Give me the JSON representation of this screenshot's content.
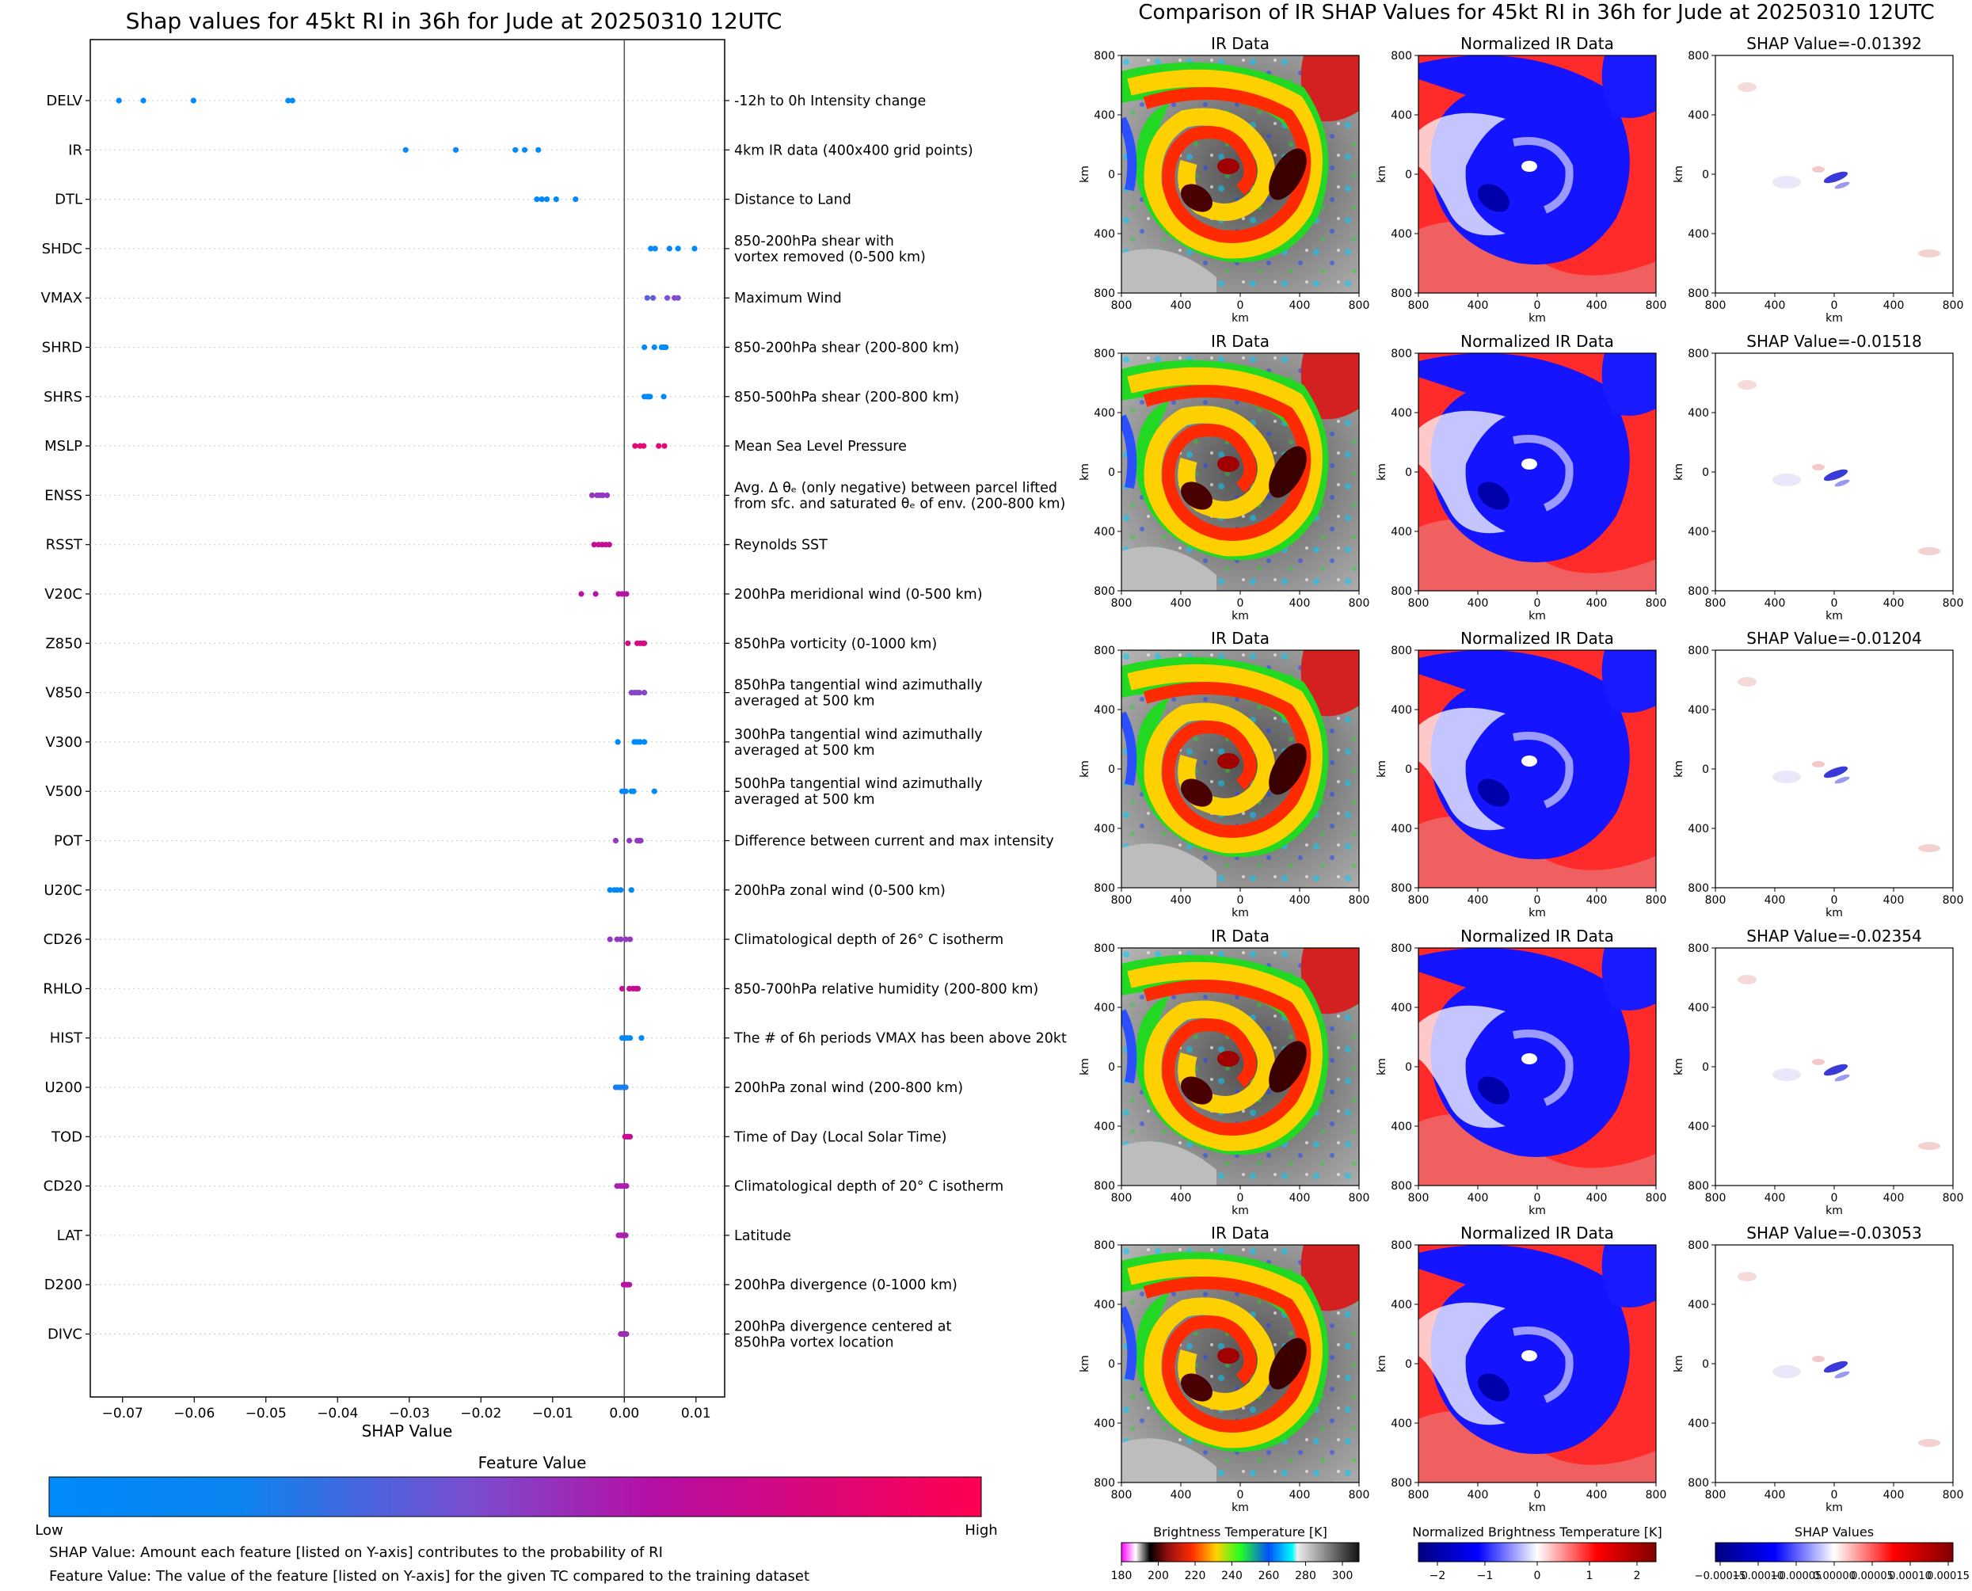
{
  "chart_data": [
    {
      "type": "scatter",
      "title": "Shap values for 45kt RI in 36h for Jude at 20250310 12UTC",
      "xlabel": "SHAP Value",
      "xlim": [
        -0.0745,
        0.014
      ],
      "xticks": [
        -0.07,
        -0.06,
        -0.05,
        -0.04,
        -0.03,
        -0.02,
        -0.01,
        0.0,
        0.01
      ],
      "xtick_labels": [
        "−0.07",
        "−0.06",
        "−0.05",
        "−0.04",
        "−0.03",
        "−0.02",
        "−0.01",
        "0.00",
        "0.01"
      ],
      "features": [
        {
          "name": "DELV",
          "desc": [
            "-12h to 0h Intensity change"
          ],
          "fv": [
            0.0,
            0.0,
            0.0,
            0.0,
            0.0
          ],
          "shap": [
            -0.0705,
            -0.0671,
            -0.0601,
            -0.0469,
            -0.0463
          ]
        },
        {
          "name": "IR",
          "desc": [
            "4km IR data (400x400 grid points)"
          ],
          "fv": [
            0.0,
            0.0,
            0.0,
            0.0,
            0.0
          ],
          "shap": [
            -0.0305,
            -0.0235,
            -0.0152,
            -0.0139,
            -0.012
          ]
        },
        {
          "name": "DTL",
          "desc": [
            "Distance to Land"
          ],
          "fv": [
            0.0,
            0.0,
            0.0,
            0.0,
            0.0
          ],
          "shap": [
            -0.0122,
            -0.0115,
            -0.0108,
            -0.0095,
            -0.0068
          ]
        },
        {
          "name": "SHDC",
          "desc": [
            "850-200hPa shear with",
            "vortex removed (0-500 km)"
          ],
          "fv": [
            0.05,
            0.05,
            0.05,
            0.05,
            0.05
          ],
          "shap": [
            0.0037,
            0.0043,
            0.0063,
            0.0075,
            0.0098
          ]
        },
        {
          "name": "VMAX",
          "desc": [
            "Maximum Wind"
          ],
          "fv": [
            0.42,
            0.45,
            0.5,
            0.55,
            0.5
          ],
          "shap": [
            0.0032,
            0.004,
            0.006,
            0.007,
            0.0075
          ]
        },
        {
          "name": "SHRD",
          "desc": [
            "850-200hPa shear (200-800 km)"
          ],
          "fv": [
            0.05,
            0.05,
            0.05,
            0.05,
            0.05
          ],
          "shap": [
            0.0028,
            0.0042,
            0.0052,
            0.0058,
            0.0055
          ]
        },
        {
          "name": "SHRS",
          "desc": [
            "850-500hPa shear (200-800 km)"
          ],
          "fv": [
            0.05,
            0.05,
            0.05,
            0.05,
            0.05
          ],
          "shap": [
            0.0028,
            0.0032,
            0.0036,
            0.0055,
            0.0034
          ]
        },
        {
          "name": "MSLP",
          "desc": [
            "Mean Sea Level Pressure"
          ],
          "fv": [
            0.9,
            0.9,
            0.9,
            0.9,
            0.9
          ],
          "shap": [
            0.0015,
            0.0022,
            0.0027,
            0.0048,
            0.0056
          ]
        },
        {
          "name": "ENSS",
          "desc": [
            "Avg. Δ θₑ (only negative) between parcel lifted",
            "from sfc. and saturated θₑ of env. (200-800 km)"
          ],
          "fv": [
            0.6,
            0.6,
            0.6,
            0.6,
            0.6
          ],
          "shap": [
            -0.0045,
            -0.0038,
            -0.0034,
            -0.003,
            -0.0024
          ]
        },
        {
          "name": "RSST",
          "desc": [
            "Reynolds SST"
          ],
          "fv": [
            0.8,
            0.8,
            0.8,
            0.8,
            0.8
          ],
          "shap": [
            -0.0042,
            -0.0036,
            -0.0031,
            -0.0026,
            -0.0021
          ]
        },
        {
          "name": "V20C",
          "desc": [
            "200hPa meridional wind (0-500 km)"
          ],
          "fv": [
            0.75,
            0.75,
            0.75,
            0.75,
            0.75
          ],
          "shap": [
            -0.006,
            -0.004,
            -0.0008,
            -0.0003,
            0.0003
          ]
        },
        {
          "name": "Z850",
          "desc": [
            "850hPa vorticity (0-1000 km)"
          ],
          "fv": [
            0.85,
            0.85,
            0.85,
            0.85,
            0.85
          ],
          "shap": [
            0.0005,
            0.0018,
            0.0022,
            0.0026,
            0.0028
          ]
        },
        {
          "name": "V850",
          "desc": [
            "850hPa tangential wind azimuthally",
            "averaged at 500 km"
          ],
          "fv": [
            0.55,
            0.55,
            0.55,
            0.55,
            0.55
          ],
          "shap": [
            0.001,
            0.0014,
            0.0018,
            0.0021,
            0.0028
          ]
        },
        {
          "name": "V300",
          "desc": [
            "300hPa tangential wind azimuthally",
            "averaged at 500 km"
          ],
          "fv": [
            0.1,
            0.1,
            0.1,
            0.1,
            0.1
          ],
          "shap": [
            -0.0009,
            0.0014,
            0.0018,
            0.0022,
            0.0028
          ]
        },
        {
          "name": "V500",
          "desc": [
            "500hPa tangential wind azimuthally",
            "averaged at 500 km"
          ],
          "fv": [
            0.1,
            0.1,
            0.1,
            0.1,
            0.1
          ],
          "shap": [
            -0.0003,
            0.0002,
            0.001,
            0.0013,
            0.0042
          ]
        },
        {
          "name": "POT",
          "desc": [
            "Difference between current and max intensity"
          ],
          "fv": [
            0.6,
            0.6,
            0.6,
            0.6,
            0.6
          ],
          "shap": [
            -0.0012,
            0.0007,
            0.0018,
            0.0021,
            0.0023
          ]
        },
        {
          "name": "U20C",
          "desc": [
            "200hPa zonal wind (0-500 km)"
          ],
          "fv": [
            0.2,
            0.2,
            0.2,
            0.2,
            0.2
          ],
          "shap": [
            -0.002,
            -0.0014,
            -0.001,
            -0.0005,
            0.001
          ]
        },
        {
          "name": "CD26",
          "desc": [
            "Climatological depth of 26° C isotherm"
          ],
          "fv": [
            0.6,
            0.6,
            0.6,
            0.6,
            0.6
          ],
          "shap": [
            -0.002,
            -0.001,
            -0.0005,
            0.0002,
            0.0008
          ]
        },
        {
          "name": "RHLO",
          "desc": [
            "850-700hPa relative humidity (200-800 km)"
          ],
          "fv": [
            0.8,
            0.8,
            0.8,
            0.8,
            0.8
          ],
          "shap": [
            -0.0003,
            0.0007,
            0.0012,
            0.0016,
            0.0019
          ]
        },
        {
          "name": "HIST",
          "desc": [
            "The # of 6h periods VMAX has been above 20kt"
          ],
          "fv": [
            0.15,
            0.15,
            0.15,
            0.15,
            0.15
          ],
          "shap": [
            -0.0003,
            0.0001,
            0.0004,
            0.0008,
            0.0024
          ]
        },
        {
          "name": "U200",
          "desc": [
            "200hPa zonal wind (200-800 km)"
          ],
          "fv": [
            0.3,
            0.3,
            0.3,
            0.3,
            0.3
          ],
          "shap": [
            -0.0012,
            -0.0008,
            -0.0005,
            -0.0002,
            0.0002
          ]
        },
        {
          "name": "TOD",
          "desc": [
            "Time of Day (Local Solar Time)"
          ],
          "fv": [
            0.8,
            0.8,
            0.8,
            0.8,
            0.8
          ],
          "shap": [
            0.0001,
            0.0003,
            0.0005,
            0.0006,
            0.0008
          ]
        },
        {
          "name": "CD20",
          "desc": [
            "Climatological depth of 20° C isotherm"
          ],
          "fv": [
            0.7,
            0.7,
            0.7,
            0.7,
            0.7
          ],
          "shap": [
            -0.001,
            -0.0006,
            -0.0003,
            0.0,
            0.0003
          ]
        },
        {
          "name": "LAT",
          "desc": [
            "Latitude"
          ],
          "fv": [
            0.7,
            0.7,
            0.7,
            0.7,
            0.7
          ],
          "shap": [
            -0.0008,
            -0.0005,
            -0.0003,
            -0.0001,
            0.0002
          ]
        },
        {
          "name": "D200",
          "desc": [
            "200hPa divergence (0-1000 km)"
          ],
          "fv": [
            0.75,
            0.75,
            0.75,
            0.75,
            0.75
          ],
          "shap": [
            -0.0001,
            0.0001,
            0.0003,
            0.0005,
            0.0007
          ]
        },
        {
          "name": "DIVC",
          "desc": [
            "200hPa divergence centered at",
            "850hPa vortex location"
          ],
          "fv": [
            0.65,
            0.65,
            0.65,
            0.65,
            0.65
          ],
          "shap": [
            -0.0005,
            -0.0003,
            -0.0001,
            0.0001,
            0.0003
          ]
        }
      ],
      "colorbar": {
        "title": "Feature Value",
        "low_label": "Low",
        "high_label": "High",
        "colors": [
          "#008afb",
          "#0088f4",
          "#7c52d0",
          "#b712a6",
          "#ff0051"
        ]
      },
      "notes": [
        "SHAP Value: Amount each feature [listed on Y-axis] contributes to the probability of RI",
        "Feature Value: The value of the feature [listed on Y-axis] for the given TC compared to the training dataset"
      ]
    },
    {
      "type": "heatmap",
      "title": "Comparison of IR SHAP Values for 45kt RI in 36h for Jude at 20250310 12UTC",
      "column_titles": [
        "IR Data",
        "Normalized IR Data"
      ],
      "shap_titles": [
        "SHAP Value=-0.01392",
        "SHAP Value=-0.01518",
        "SHAP Value=-0.01204",
        "SHAP Value=-0.02354",
        "SHAP Value=-0.03053"
      ],
      "axis_label": "km",
      "tick_labels": [
        "800",
        "400",
        "0",
        "400",
        "800"
      ],
      "colorbars": [
        {
          "title": "Brightness Temperature [K]",
          "ticks": [
            "180",
            "200",
            "220",
            "240",
            "260",
            "280",
            "300"
          ]
        },
        {
          "title": "Normalized Brightness Temperature [K]",
          "ticks": [
            "−2",
            "−1",
            "0",
            "1",
            "2"
          ]
        },
        {
          "title": "SHAP Values",
          "ticks": [
            "−0.00015",
            "−0.00010",
            "−0.00005",
            "0.00000",
            "0.00005",
            "0.00010",
            "0.00015"
          ]
        }
      ]
    }
  ]
}
